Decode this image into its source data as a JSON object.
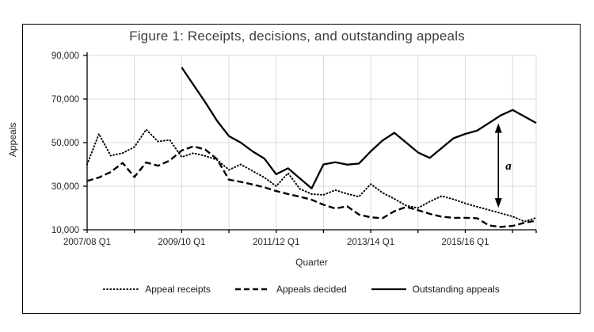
{
  "chart_data": {
    "type": "line",
    "title": "Figure 1: Receipts, decisions, and outstanding appeals",
    "xlabel": "Quarter",
    "ylabel": "Appeals",
    "x_unit": "quarter",
    "x_start_label": "2007/08 Q1",
    "n_points": 39,
    "ylim": [
      10000,
      90000
    ],
    "grid": true,
    "legend_position": "bottom",
    "yticks": [
      {
        "value": 90000,
        "label": "90,000"
      },
      {
        "value": 70000,
        "label": "70,000"
      },
      {
        "value": 50000,
        "label": "50,000"
      },
      {
        "value": 30000,
        "label": "30,000"
      },
      {
        "value": 10000,
        "label": "10,000"
      }
    ],
    "xticks": [
      {
        "index": 0,
        "label": "2007/08 Q1"
      },
      {
        "index": 8,
        "label": "2009/10 Q1"
      },
      {
        "index": 16,
        "label": "2011/12 Q1"
      },
      {
        "index": 24,
        "label": "2013/14 Q1"
      },
      {
        "index": 32,
        "label": "2015/16 Q1"
      }
    ],
    "x_gridline_indices": [
      4,
      8,
      12,
      16,
      20,
      24,
      28,
      32,
      36,
      38
    ],
    "x_tickmark_indices": [
      0,
      4,
      8,
      12,
      16,
      20,
      24,
      28,
      32,
      36,
      38
    ],
    "series": [
      {
        "name": "Appeal receipts",
        "style": "dotted",
        "values": [
          40000,
          54000,
          44000,
          45200,
          48000,
          56000,
          50500,
          51200,
          43400,
          45200,
          43900,
          42100,
          37500,
          40000,
          37000,
          34000,
          30000,
          36000,
          28800,
          26400,
          26000,
          28200,
          26500,
          25200,
          31000,
          27000,
          24200,
          21100,
          20000,
          23000,
          25500,
          24000,
          22100,
          20600,
          19100,
          17600,
          16100,
          13800,
          15500
        ]
      },
      {
        "name": "Appeals decided",
        "style": "dashed",
        "values": [
          32400,
          34000,
          36500,
          40700,
          34200,
          40900,
          39400,
          41800,
          46400,
          48300,
          46800,
          42400,
          33000,
          32000,
          30800,
          29500,
          27800,
          26400,
          25200,
          23800,
          21500,
          19800,
          20800,
          17000,
          15700,
          15300,
          18500,
          20500,
          19000,
          17300,
          16000,
          15500,
          15500,
          15300,
          12000,
          11300,
          11800,
          13200,
          14200
        ]
      },
      {
        "name": "Outstanding appeals",
        "style": "solid",
        "values": [
          null,
          null,
          null,
          null,
          null,
          null,
          null,
          null,
          84500,
          76500,
          68500,
          60000,
          53000,
          50000,
          46000,
          42700,
          35500,
          38200,
          33600,
          29000,
          40000,
          41000,
          39900,
          40400,
          46000,
          51000,
          54500,
          50000,
          45500,
          43000,
          47500,
          52000,
          54000,
          55500,
          59000,
          62500,
          65000,
          62000,
          59000
        ]
      }
    ],
    "annotation": {
      "label": "a",
      "x_index": 34.8,
      "arrow_top_value": 58500,
      "arrow_bottom_value": 20500
    },
    "colors": {
      "line": "#000000",
      "grid": "#d9d9d9",
      "axis": "#808080",
      "title_text": "#3f3f3f",
      "axis_text": "#262626"
    }
  }
}
